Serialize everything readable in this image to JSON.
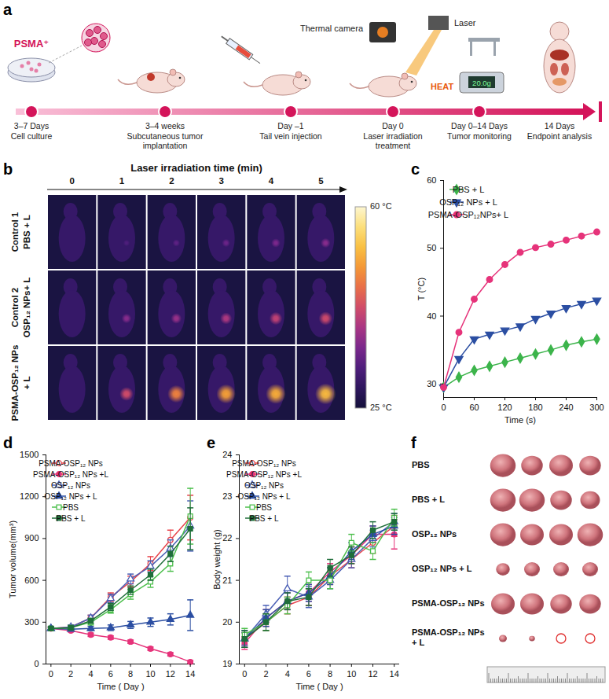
{
  "panel_letters": [
    "a",
    "b",
    "c",
    "d",
    "e",
    "f"
  ],
  "panel_a": {
    "steps": [
      {
        "time": "3–7 Days",
        "label": "Cell culture"
      },
      {
        "time": "3–4 weeks",
        "label": "Subcutaneous tumor implantation"
      },
      {
        "time": "Day –1",
        "label": "Tail vein injection"
      },
      {
        "time": "Day 0",
        "label": "Laser irradiation treatment"
      },
      {
        "time": "Day 0–14 Days",
        "label": "Tumor monitoring"
      },
      {
        "time": "14 Days",
        "label": "Endpoint analysis"
      }
    ],
    "icon_labels": {
      "cells": "PSMA⁺",
      "camera": "Thermal camera",
      "laser": "Laser",
      "heat": "HEAT",
      "scale": "20.0g"
    }
  },
  "panel_b": {
    "title": "Laser irradiation time (min)",
    "columns": [
      0,
      1,
      2,
      3,
      4,
      5
    ],
    "rows": [
      {
        "label": [
          "Control 1",
          "PBS + L"
        ],
        "spot_temps": [
          29.5,
          32.0,
          33.2,
          34.4,
          35.7,
          36.6
        ]
      },
      {
        "label": [
          "Control 2",
          "OSP₁₂ NPs+ L"
        ],
        "spot_temps": [
          29.5,
          36.6,
          37.9,
          39.6,
          41.2,
          42.3
        ]
      },
      {
        "label": [
          "PSMA-OSP₁₂ NPs",
          "+ L"
        ],
        "spot_temps": [
          29.5,
          42.5,
          47.6,
          50.1,
          51.2,
          52.4
        ]
      }
    ],
    "colorbar": {
      "range": [
        25,
        60
      ],
      "ticks": [
        {
          "value": 60,
          "label": "60 °C"
        },
        {
          "value": 25,
          "label": "25 °C"
        }
      ]
    }
  },
  "chart_data": [
    {
      "type": "line",
      "x_label": "Time (s)",
      "y_label": "T (°C)",
      "x": [
        0,
        30,
        60,
        90,
        120,
        150,
        180,
        210,
        240,
        270,
        300
      ],
      "xlim": [
        0,
        300
      ],
      "xticks": [
        0,
        60,
        120,
        180,
        240,
        300
      ],
      "ylim": [
        28,
        60
      ],
      "yticks": [
        30,
        40,
        50,
        60
      ],
      "legend": "top-left",
      "series": [
        {
          "name": "PBS + L",
          "color": "#3cb44b",
          "marker": "diamond",
          "values": [
            29.5,
            31.0,
            32.0,
            32.6,
            33.2,
            33.8,
            34.4,
            35.0,
            35.7,
            36.2,
            36.6
          ]
        },
        {
          "name": "OSP₁₂ NPs + L",
          "color": "#2b4ea2",
          "marker": "triangle-down",
          "values": [
            29.5,
            33.7,
            36.6,
            37.3,
            37.9,
            38.5,
            39.6,
            40.4,
            41.2,
            41.8,
            42.3
          ]
        },
        {
          "name": "PSMA-OSP₁₂NPs+ L",
          "color": "#e6337a",
          "marker": "circle",
          "values": [
            29.5,
            37.6,
            42.5,
            45.4,
            47.6,
            49.4,
            50.1,
            50.6,
            51.2,
            51.8,
            52.4
          ]
        }
      ]
    },
    {
      "type": "line",
      "x_label": "Time ( Day )",
      "y_label": "Tumor volume(mm³)",
      "x": [
        0,
        2,
        4,
        6,
        8,
        10,
        12,
        14
      ],
      "xlim": [
        -0.5,
        14.5
      ],
      "xticks": [
        0,
        2,
        4,
        6,
        8,
        10,
        12,
        14
      ],
      "ylim": [
        0,
        1500
      ],
      "yticks": [
        0,
        300,
        600,
        900,
        1200,
        1500
      ],
      "legend": "top-left",
      "series": [
        {
          "name": "PSMA-OSP₁₂ NPs",
          "color": "#e8434b",
          "marker": "circle-open",
          "values": [
            255,
            265,
            330,
            480,
            590,
            720,
            890,
            1050
          ],
          "errors": [
            10,
            12,
            20,
            30,
            40,
            50,
            70,
            160
          ]
        },
        {
          "name": "PSMA-OSP₁₂ NPs +L",
          "color": "#e6337a",
          "marker": "circle",
          "values": [
            255,
            240,
            210,
            190,
            160,
            110,
            70,
            15
          ],
          "errors": [
            10,
            10,
            12,
            12,
            12,
            12,
            12,
            10
          ]
        },
        {
          "name": "OSP₁₂ NPs",
          "color": "#4a5fb5",
          "marker": "triangle-open",
          "values": [
            255,
            265,
            330,
            470,
            610,
            700,
            830,
            990
          ],
          "errors": [
            10,
            15,
            20,
            30,
            35,
            40,
            60,
            180
          ]
        },
        {
          "name": "OSP₁₂ NPs + L",
          "color": "#2b4ea2",
          "marker": "triangle",
          "values": [
            255,
            250,
            255,
            260,
            280,
            300,
            320,
            350
          ],
          "errors": [
            10,
            12,
            15,
            20,
            25,
            30,
            40,
            110
          ]
        },
        {
          "name": "PBS",
          "color": "#4cbf4c",
          "marker": "square-open",
          "values": [
            255,
            260,
            300,
            390,
            500,
            590,
            720,
            1060
          ],
          "errors": [
            10,
            12,
            20,
            25,
            35,
            40,
            55,
            200
          ]
        },
        {
          "name": "PBS + L",
          "color": "#1f6e3a",
          "marker": "square",
          "values": [
            255,
            260,
            310,
            410,
            530,
            640,
            790,
            970
          ],
          "errors": [
            10,
            12,
            18,
            25,
            30,
            40,
            55,
            150
          ]
        }
      ]
    },
    {
      "type": "line",
      "x_label": "Time ( Day )",
      "y_label": "Body weight (g)",
      "x": [
        0,
        2,
        4,
        6,
        8,
        10,
        12,
        14
      ],
      "xlim": [
        -0.5,
        14.5
      ],
      "xticks": [
        0,
        2,
        4,
        6,
        8,
        10,
        12,
        14
      ],
      "ylim": [
        19,
        24
      ],
      "yticks": [
        19,
        20,
        21,
        22,
        23,
        24
      ],
      "legend": "top-left",
      "series": [
        {
          "name": "PSMA-OSP₁₂ NPs",
          "color": "#e8434b",
          "marker": "circle-open",
          "values": [
            19.6,
            20.0,
            20.4,
            20.6,
            21.1,
            21.5,
            21.9,
            22.3
          ],
          "errors": [
            0.15,
            0.2,
            0.2,
            0.2,
            0.2,
            0.2,
            0.25,
            0.25
          ]
        },
        {
          "name": "PSMA-OSP₁₂ NPs +L",
          "color": "#e6337a",
          "marker": "circle",
          "values": [
            19.5,
            20.1,
            20.5,
            20.7,
            21.2,
            21.6,
            22.1,
            22.1
          ],
          "errors": [
            0.15,
            0.2,
            0.2,
            0.2,
            0.2,
            0.2,
            0.2,
            0.35
          ]
        },
        {
          "name": "OSP₁₂ NPs",
          "color": "#4a5fb5",
          "marker": "triangle-open",
          "values": [
            19.6,
            20.2,
            20.8,
            20.6,
            21.0,
            21.5,
            22.0,
            22.4
          ],
          "errors": [
            0.15,
            0.2,
            0.3,
            0.25,
            0.2,
            0.2,
            0.2,
            0.2
          ]
        },
        {
          "name": "OSP₁₂ NPs + L",
          "color": "#2b4ea2",
          "marker": "triangle",
          "values": [
            19.6,
            20.1,
            20.5,
            20.7,
            21.1,
            21.7,
            22.1,
            22.3
          ],
          "errors": [
            0.2,
            0.2,
            0.2,
            0.2,
            0.2,
            0.2,
            0.2,
            0.2
          ]
        },
        {
          "name": "PBS",
          "color": "#4cbf4c",
          "marker": "square-open",
          "values": [
            19.7,
            20.0,
            20.4,
            21.0,
            21.0,
            21.9,
            21.7,
            22.5
          ],
          "errors": [
            0.15,
            0.2,
            0.2,
            0.2,
            0.2,
            0.2,
            0.2,
            0.2
          ]
        },
        {
          "name": "PBS + L",
          "color": "#1f6e3a",
          "marker": "square",
          "values": [
            19.6,
            20.0,
            20.5,
            20.6,
            21.3,
            21.6,
            22.2,
            22.4
          ],
          "errors": [
            0.2,
            0.2,
            0.2,
            0.2,
            0.2,
            0.2,
            0.2,
            0.2
          ]
        }
      ]
    }
  ],
  "panel_f": {
    "rows": [
      {
        "label": "PBS",
        "diameters_mm": [
          13,
          11,
          12,
          11
        ]
      },
      {
        "label": "PBS + L",
        "diameters_mm": [
          13,
          13,
          11,
          10
        ]
      },
      {
        "label": "OSP₁₂ NPs",
        "diameters_mm": [
          13,
          12,
          12,
          13
        ]
      },
      {
        "label": "OSP₁₂ NPs + L",
        "diameters_mm": [
          7,
          8,
          8,
          8
        ]
      },
      {
        "label": "PSMA-OSP₁₂ NPs",
        "diameters_mm": [
          12,
          12,
          11,
          11
        ]
      },
      {
        "label": "PSMA-OSP₁₂ NPs + L",
        "diameters_mm": [
          4,
          3,
          null,
          null
        ]
      }
    ]
  }
}
